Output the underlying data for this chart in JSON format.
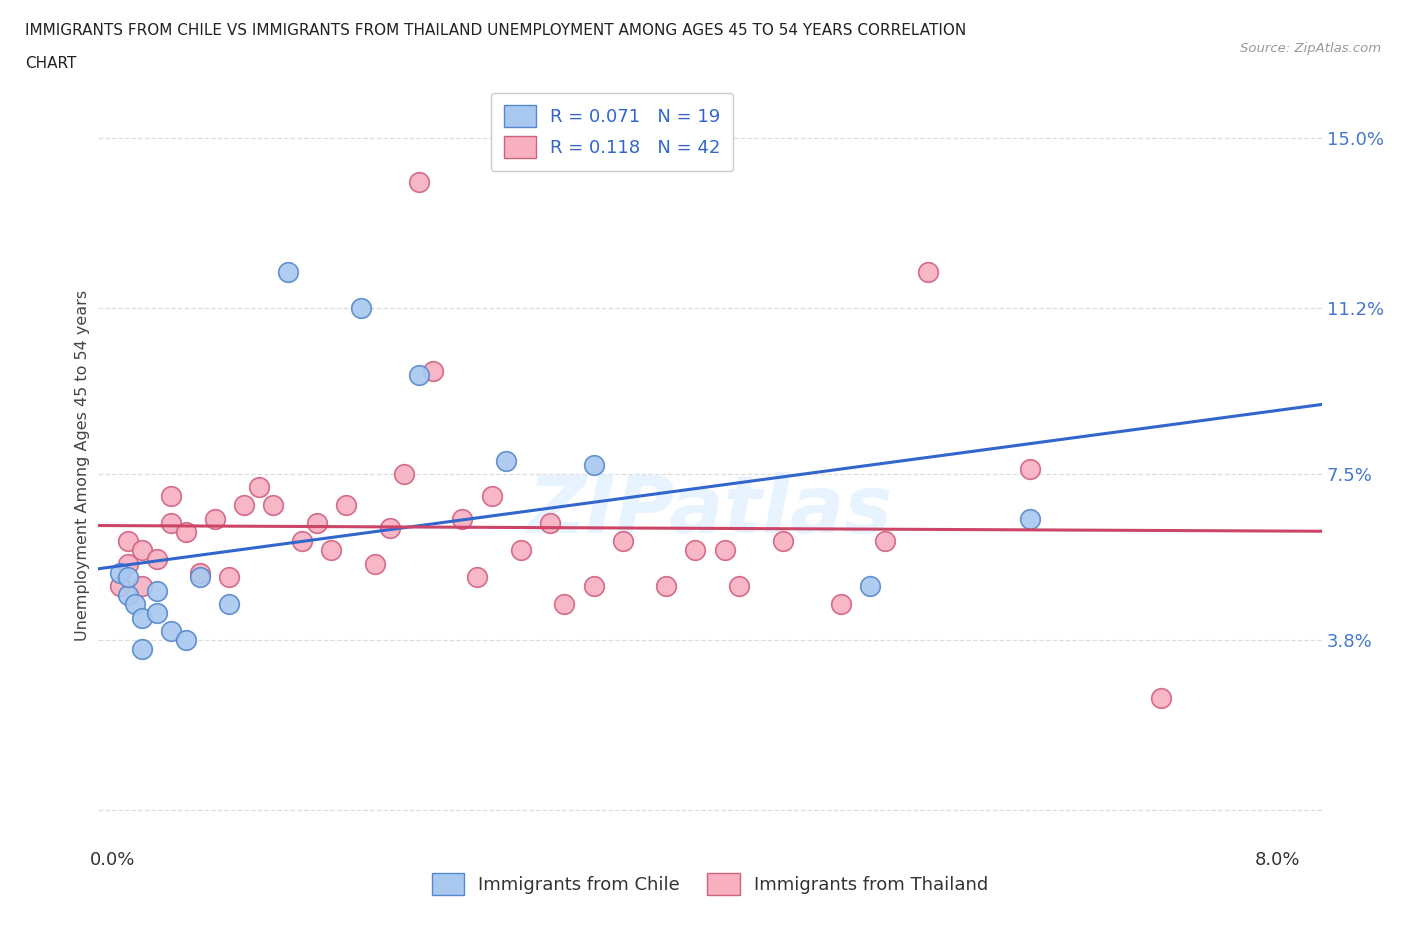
{
  "title_line1": "IMMIGRANTS FROM CHILE VS IMMIGRANTS FROM THAILAND UNEMPLOYMENT AMONG AGES 45 TO 54 YEARS CORRELATION",
  "title_line2": "CHART",
  "source": "Source: ZipAtlas.com",
  "ylabel": "Unemployment Among Ages 45 to 54 years",
  "x_ticks": [
    0.0,
    0.02,
    0.04,
    0.06,
    0.08
  ],
  "y_ticks": [
    0.0,
    0.038,
    0.075,
    0.112,
    0.15
  ],
  "y_tick_labels_right": [
    "",
    "3.8%",
    "7.5%",
    "11.2%",
    "15.0%"
  ],
  "xlim": [
    -0.001,
    0.083
  ],
  "ylim": [
    -0.008,
    0.162
  ],
  "chile_color": "#a8c8f0",
  "chile_edge": "#5588cc",
  "thailand_color": "#f8b0c0",
  "thailand_edge": "#d06080",
  "chile_R": "0.071",
  "chile_N": "19",
  "thailand_R": "0.118",
  "thailand_N": "42",
  "watermark": "ZIPatlas",
  "background_color": "#ffffff",
  "grid_color": "#dddddd",
  "chile_line_color": "#3366cc",
  "thailand_line_color": "#cc4466",
  "legend_R_color": "#3366cc",
  "legend_N_color": "#3366cc",
  "chile_scatter_x": [
    0.0005,
    0.001,
    0.001,
    0.0015,
    0.002,
    0.002,
    0.003,
    0.003,
    0.004,
    0.005,
    0.006,
    0.008,
    0.012,
    0.017,
    0.021,
    0.027,
    0.033,
    0.052,
    0.063
  ],
  "chile_scatter_y": [
    0.053,
    0.048,
    0.052,
    0.046,
    0.036,
    0.043,
    0.044,
    0.049,
    0.04,
    0.038,
    0.052,
    0.046,
    0.12,
    0.112,
    0.097,
    0.078,
    0.077,
    0.05,
    0.065
  ],
  "thailand_scatter_x": [
    0.0005,
    0.001,
    0.001,
    0.002,
    0.002,
    0.003,
    0.004,
    0.004,
    0.005,
    0.006,
    0.007,
    0.008,
    0.009,
    0.01,
    0.011,
    0.013,
    0.014,
    0.015,
    0.016,
    0.018,
    0.019,
    0.02,
    0.021,
    0.022,
    0.024,
    0.025,
    0.026,
    0.028,
    0.03,
    0.031,
    0.033,
    0.035,
    0.038,
    0.04,
    0.042,
    0.043,
    0.046,
    0.05,
    0.053,
    0.056,
    0.063,
    0.072
  ],
  "thailand_scatter_y": [
    0.05,
    0.055,
    0.06,
    0.05,
    0.058,
    0.056,
    0.064,
    0.07,
    0.062,
    0.053,
    0.065,
    0.052,
    0.068,
    0.072,
    0.068,
    0.06,
    0.064,
    0.058,
    0.068,
    0.055,
    0.063,
    0.075,
    0.14,
    0.098,
    0.065,
    0.052,
    0.07,
    0.058,
    0.064,
    0.046,
    0.05,
    0.06,
    0.05,
    0.058,
    0.058,
    0.05,
    0.06,
    0.046,
    0.06,
    0.12,
    0.076,
    0.025
  ]
}
